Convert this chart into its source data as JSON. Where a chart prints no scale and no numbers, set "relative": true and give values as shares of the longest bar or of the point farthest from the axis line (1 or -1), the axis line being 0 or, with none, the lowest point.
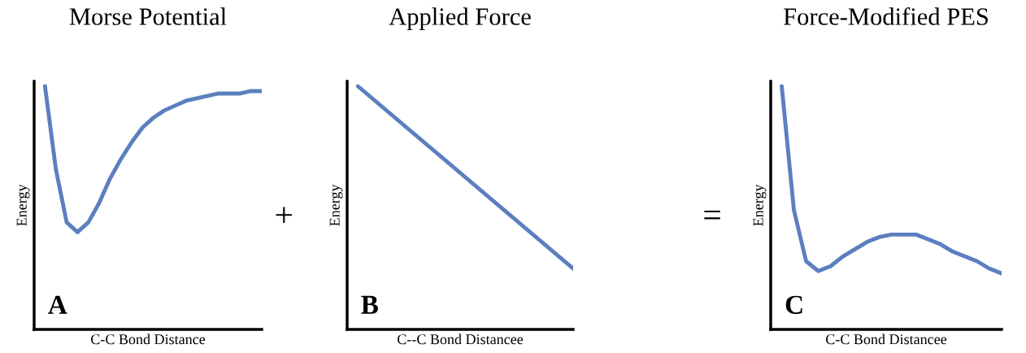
{
  "chart_data": [
    {
      "type": "line",
      "relative": true,
      "title": "Morse Potential",
      "xlabel": "C-C Bond Distance",
      "ylabel": "Energy",
      "annotations": [
        "A",
        "+"
      ],
      "categories": [
        null,
        null,
        null,
        null,
        null,
        null,
        null,
        null,
        null,
        null,
        null,
        null,
        null,
        null,
        null,
        null,
        null,
        null,
        null,
        null,
        null
      ],
      "series": [
        {
          "color": "#5b7fbf",
          "values": [
            1,
            0.66,
            0.44,
            0.4,
            0.44,
            0.52,
            0.62,
            0.7,
            0.77,
            0.83,
            0.87,
            0.9,
            0.92,
            0.94,
            0.95,
            0.96,
            0.97,
            0.97,
            0.97,
            0.98,
            0.98
          ]
        }
      ],
      "tick_labels": false
    },
    {
      "type": "line",
      "relative": true,
      "title": "Applied Force",
      "xlabel": "C--C Bond Distancee",
      "ylabel": "Energy",
      "annotations": [
        "B",
        "="
      ],
      "categories": [
        null,
        null
      ],
      "series": [
        {
          "color": "#5b7fbf",
          "values": [
            1,
            0.25
          ]
        }
      ],
      "tick_labels": false
    },
    {
      "type": "line",
      "relative": true,
      "title": "Force-Modified PES",
      "xlabel": "C-C Bond Distancee",
      "ylabel": "Energy",
      "annotations": [
        "C"
      ],
      "categories": [
        null,
        null,
        null,
        null,
        null,
        null,
        null,
        null,
        null,
        null,
        null,
        null,
        null,
        null,
        null,
        null,
        null,
        null,
        null
      ],
      "series": [
        {
          "color": "#5b7fbf",
          "values": [
            1,
            0.49,
            0.28,
            0.24,
            0.26,
            0.3,
            0.33,
            0.36,
            0.38,
            0.39,
            0.39,
            0.39,
            0.37,
            0.35,
            0.32,
            0.3,
            0.28,
            0.25,
            0.23
          ]
        }
      ],
      "tick_labels": false
    }
  ]
}
